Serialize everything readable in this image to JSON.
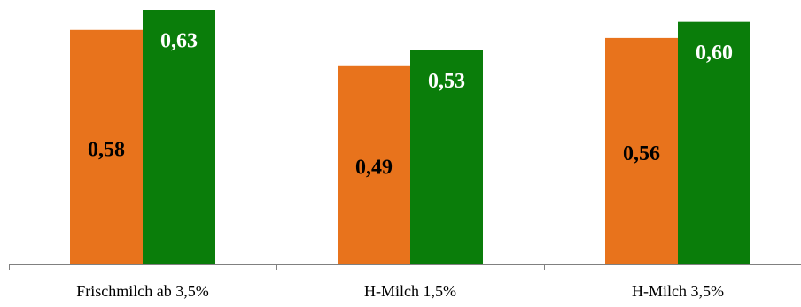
{
  "chart_data": {
    "type": "bar",
    "categories": [
      "Frischmilch ab 3,5%",
      "H-Milch 1,5%",
      "H-Milch 3,5%"
    ],
    "series": [
      {
        "values": [
          0.58,
          0.49,
          0.56
        ],
        "labels": [
          "0,58",
          "0,49",
          "0,56"
        ],
        "color": "#E8731C",
        "label_color": "#000000"
      },
      {
        "values": [
          0.63,
          0.53,
          0.6
        ],
        "labels": [
          "0,63",
          "0,53",
          "0,60"
        ],
        "color": "#0A7D0A",
        "label_color": "#ffffff"
      }
    ],
    "ylim": [
      0,
      0.63
    ],
    "grid": false,
    "legend": "none"
  }
}
